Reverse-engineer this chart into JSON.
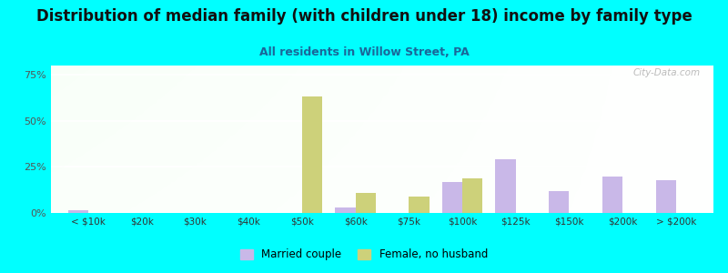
{
  "title": "Distribution of median family (with children under 18) income by family type",
  "subtitle": "All residents in Willow Street, PA",
  "categories": [
    "< $10k",
    "$20k",
    "$30k",
    "$40k",
    "$50k",
    "$60k",
    "$75k",
    "$100k",
    "$125k",
    "$150k",
    "$200k",
    "> $200k"
  ],
  "married_couple": [
    1.5,
    0,
    0,
    0,
    0,
    3,
    0,
    17,
    29,
    12,
    20,
    18
  ],
  "female_no_husband": [
    0,
    0,
    0,
    0,
    63,
    11,
    9,
    19,
    0,
    0,
    0,
    0
  ],
  "married_color": "#c9b8e8",
  "female_color": "#cdd17a",
  "background_color": "#00ffff",
  "title_fontsize": 12,
  "subtitle_fontsize": 9,
  "subtitle_color": "#1a6699",
  "watermark": "City-Data.com",
  "ylim": [
    0,
    80
  ],
  "yticks": [
    0,
    25,
    50,
    75
  ],
  "ytick_labels": [
    "0%",
    "25%",
    "50%",
    "75%"
  ]
}
